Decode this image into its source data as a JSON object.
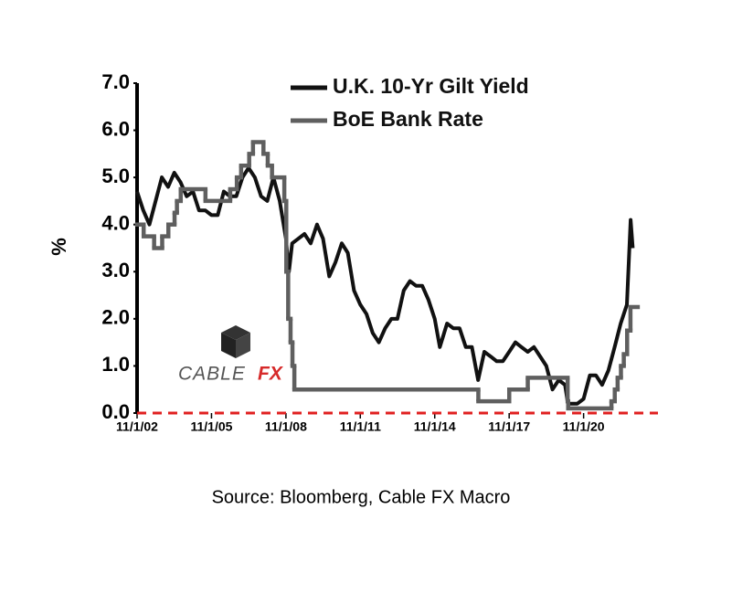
{
  "chart_data": {
    "type": "line",
    "y_label": "%",
    "source": "Source: Bloomberg, Cable FX Macro",
    "watermark": [
      "CABLE",
      "FX"
    ],
    "xlim": [
      "2002-11-01",
      "2023-11-01"
    ],
    "xticks": [
      {
        "value": "2002-11-01",
        "label": "11/1/02"
      },
      {
        "value": "2005-11-01",
        "label": "11/1/05"
      },
      {
        "value": "2008-11-01",
        "label": "11/1/08"
      },
      {
        "value": "2011-11-01",
        "label": "11/1/11"
      },
      {
        "value": "2014-11-01",
        "label": "11/1/14"
      },
      {
        "value": "2017-11-01",
        "label": "11/1/17"
      },
      {
        "value": "2020-11-01",
        "label": "11/1/20"
      }
    ],
    "ylim": [
      0,
      7
    ],
    "yticks": [
      {
        "value": 0,
        "label": "0.0"
      },
      {
        "value": 1,
        "label": "1.0"
      },
      {
        "value": 2,
        "label": "2.0"
      },
      {
        "value": 3,
        "label": "3.0"
      },
      {
        "value": 4,
        "label": "4.0"
      },
      {
        "value": 5,
        "label": "5.0"
      },
      {
        "value": 6,
        "label": "6.0"
      },
      {
        "value": 7,
        "label": "7.0"
      }
    ],
    "series": [
      {
        "name": "U.K. 10-Yr Gilt Yield",
        "color": "#111111",
        "step": false,
        "x": [
          "2002-11-01",
          "2003-02-01",
          "2003-05-01",
          "2003-08-01",
          "2003-11-01",
          "2004-02-01",
          "2004-05-01",
          "2004-08-01",
          "2004-11-01",
          "2005-02-01",
          "2005-05-01",
          "2005-08-01",
          "2005-11-01",
          "2006-02-01",
          "2006-05-01",
          "2006-08-01",
          "2006-11-01",
          "2007-02-01",
          "2007-05-01",
          "2007-08-01",
          "2007-11-01",
          "2008-02-01",
          "2008-05-01",
          "2008-08-01",
          "2008-11-01",
          "2008-12-15",
          "2009-02-01",
          "2009-05-01",
          "2009-08-01",
          "2009-11-01",
          "2010-02-01",
          "2010-05-01",
          "2010-08-01",
          "2010-11-01",
          "2011-02-01",
          "2011-05-01",
          "2011-08-01",
          "2011-11-01",
          "2012-02-01",
          "2012-05-01",
          "2012-08-01",
          "2012-11-01",
          "2013-02-01",
          "2013-05-01",
          "2013-08-01",
          "2013-11-01",
          "2014-02-01",
          "2014-05-01",
          "2014-08-01",
          "2014-11-01",
          "2015-01-15",
          "2015-05-01",
          "2015-08-01",
          "2015-11-01",
          "2016-02-01",
          "2016-05-01",
          "2016-08-01",
          "2016-11-01",
          "2017-02-01",
          "2017-05-01",
          "2017-08-01",
          "2017-11-01",
          "2018-02-01",
          "2018-05-01",
          "2018-08-01",
          "2018-11-01",
          "2019-02-01",
          "2019-05-01",
          "2019-08-01",
          "2019-11-01",
          "2020-02-01",
          "2020-03-15",
          "2020-08-01",
          "2020-11-01",
          "2021-02-01",
          "2021-05-01",
          "2021-08-01",
          "2021-11-01",
          "2022-02-01",
          "2022-05-01",
          "2022-08-01",
          "2022-09-25",
          "2022-10-25"
        ],
        "values": [
          4.7,
          4.3,
          4.0,
          4.5,
          5.0,
          4.8,
          5.1,
          4.9,
          4.6,
          4.7,
          4.3,
          4.3,
          4.2,
          4.2,
          4.7,
          4.6,
          4.6,
          5.0,
          5.2,
          5.0,
          4.6,
          4.5,
          5.0,
          4.5,
          3.7,
          3.0,
          3.6,
          3.7,
          3.8,
          3.6,
          4.0,
          3.7,
          2.9,
          3.2,
          3.6,
          3.4,
          2.6,
          2.3,
          2.1,
          1.7,
          1.5,
          1.8,
          2.0,
          2.0,
          2.6,
          2.8,
          2.7,
          2.7,
          2.4,
          2.0,
          1.4,
          1.9,
          1.8,
          1.8,
          1.4,
          1.4,
          0.7,
          1.3,
          1.2,
          1.1,
          1.1,
          1.3,
          1.5,
          1.4,
          1.3,
          1.4,
          1.2,
          1.0,
          0.5,
          0.7,
          0.6,
          0.2,
          0.2,
          0.3,
          0.8,
          0.8,
          0.6,
          0.9,
          1.4,
          1.9,
          2.3,
          4.1,
          3.5
        ]
      },
      {
        "name": "BoE Bank Rate",
        "color": "#5f5f5f",
        "step": true,
        "x": [
          "2002-11-01",
          "2003-02-06",
          "2003-07-10",
          "2003-11-06",
          "2004-02-05",
          "2004-05-06",
          "2004-06-10",
          "2004-08-05",
          "2005-08-04",
          "2006-08-03",
          "2006-11-09",
          "2007-01-11",
          "2007-05-10",
          "2007-07-05",
          "2007-12-06",
          "2008-02-07",
          "2008-04-10",
          "2008-10-08",
          "2008-11-06",
          "2008-12-04",
          "2009-01-08",
          "2009-02-05",
          "2009-03-05",
          "2016-08-04",
          "2017-11-02",
          "2018-08-02",
          "2020-03-11",
          "2020-03-19",
          "2021-12-16",
          "2022-02-03",
          "2022-03-17",
          "2022-05-05",
          "2022-06-16",
          "2022-08-04",
          "2022-09-22"
        ],
        "values": [
          4.0,
          3.75,
          3.5,
          3.75,
          4.0,
          4.25,
          4.5,
          4.75,
          4.5,
          4.75,
          5.0,
          5.25,
          5.5,
          5.75,
          5.5,
          5.25,
          5.0,
          4.5,
          3.0,
          2.0,
          1.5,
          1.0,
          0.5,
          0.25,
          0.5,
          0.75,
          0.25,
          0.1,
          0.25,
          0.5,
          0.75,
          1.0,
          1.25,
          1.75,
          2.25
        ]
      }
    ]
  }
}
